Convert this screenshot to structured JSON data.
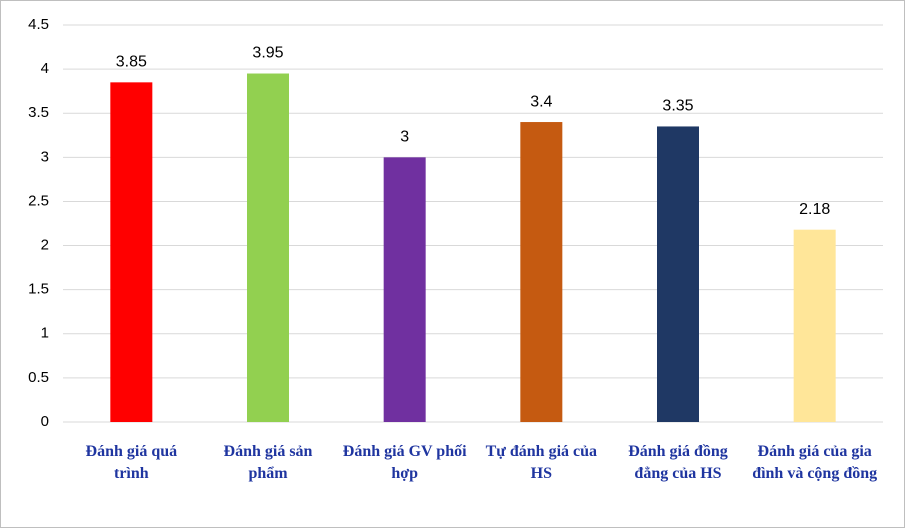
{
  "chart_data": {
    "type": "bar",
    "categories": [
      "Đánh giá quá trình",
      "Đánh giá sản phẩm",
      "Đánh giá GV phối hợp",
      "Tự đánh giá của HS",
      "Đánh giá đồng đẳng của HS",
      "Đánh giá của gia đình và cộng đồng"
    ],
    "values": [
      3.85,
      3.95,
      3,
      3.4,
      3.35,
      2.18
    ],
    "colors": [
      "#ff0000",
      "#92d050",
      "#7030a0",
      "#c55a11",
      "#1f3864",
      "#ffe699"
    ],
    "ylim": [
      0,
      4.5
    ],
    "yticks": [
      0,
      0.5,
      1,
      1.5,
      2,
      2.5,
      3,
      3.5,
      4,
      4.5
    ],
    "grid": true
  }
}
